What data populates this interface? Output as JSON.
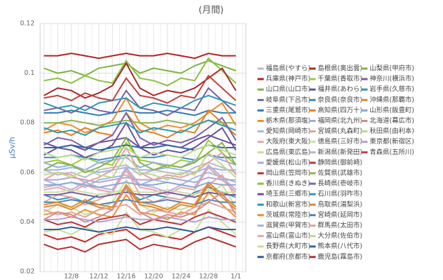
{
  "chart_data": {
    "type": "line",
    "title": "(月間)",
    "y_label": "μSv/h",
    "categories": [
      null,
      null,
      "12/8",
      null,
      "12/12",
      null,
      "12/16",
      null,
      "12/20",
      null,
      "12/24",
      null,
      "12/28",
      null,
      "1/1"
    ],
    "ylim": [
      0.02,
      0.12
    ],
    "yticks": [
      0.02,
      0.04,
      0.06,
      0.08,
      0.1,
      0.12
    ],
    "grid": true,
    "series": [
      {
        "name": "福島県(やすら)",
        "color": "#bbbbbb",
        "values": [
          0.061,
          0.059,
          0.06,
          0.058,
          0.061,
          0.062,
          0.063,
          0.059,
          0.061,
          0.06,
          0.059,
          0.062,
          0.064,
          0.062,
          0.06
        ]
      },
      {
        "name": "兵庫県(神戸市)",
        "color": "#b22222",
        "values": [
          0.107,
          0.107,
          0.108,
          0.107,
          0.106,
          0.107,
          0.108,
          0.107,
          0.107,
          0.108,
          0.107,
          0.106,
          0.108,
          0.107,
          0.107
        ]
      },
      {
        "name": "山口県(山口市)",
        "color": "#7cb342",
        "values": [
          0.102,
          0.1,
          0.101,
          0.099,
          0.102,
          0.103,
          0.104,
          0.1,
          0.102,
          0.101,
          0.1,
          0.103,
          0.105,
          0.103,
          0.101
        ]
      },
      {
        "name": "岐阜県(下呂市)",
        "color": "#7460a8",
        "values": [
          0.085,
          0.086,
          0.084,
          0.087,
          0.085,
          0.084,
          0.093,
          0.086,
          0.085,
          0.083,
          0.086,
          0.085,
          0.094,
          0.089,
          0.084
        ]
      },
      {
        "name": "三重県(尾鷲市)",
        "color": "#2c7bb6",
        "values": [
          0.084,
          0.084,
          0.085,
          0.084,
          0.083,
          0.084,
          0.085,
          0.084,
          0.084,
          0.085,
          0.084,
          0.083,
          0.085,
          0.084,
          0.084
        ]
      },
      {
        "name": "栃木県(那須塩)",
        "color": "#f08c28",
        "values": [
          0.077,
          0.08,
          0.079,
          0.076,
          0.078,
          0.081,
          0.09,
          0.08,
          0.077,
          0.079,
          0.078,
          0.08,
          0.084,
          0.088,
          0.079
        ]
      },
      {
        "name": "愛知県(岡崎市)",
        "color": "#9cbce4",
        "values": [
          0.057,
          0.055,
          0.056,
          0.054,
          0.057,
          0.058,
          0.059,
          0.055,
          0.057,
          0.056,
          0.055,
          0.058,
          0.06,
          0.058,
          0.056
        ]
      },
      {
        "name": "大阪府(東大阪)",
        "color": "#eaa4a4",
        "values": [
          0.053,
          0.054,
          0.052,
          0.055,
          0.053,
          0.052,
          0.061,
          0.054,
          0.053,
          0.051,
          0.054,
          0.053,
          0.062,
          0.057,
          0.052
        ]
      },
      {
        "name": "広島県(東広島)",
        "color": "#c6df96",
        "values": [
          0.044,
          0.047,
          0.046,
          0.043,
          0.045,
          0.048,
          0.057,
          0.047,
          0.044,
          0.046,
          0.045,
          0.047,
          0.051,
          0.055,
          0.046
        ]
      },
      {
        "name": "愛媛県(松山市)",
        "color": "#b0a6d4",
        "values": [
          0.057,
          0.057,
          0.058,
          0.057,
          0.056,
          0.057,
          0.058,
          0.057,
          0.057,
          0.058,
          0.057,
          0.056,
          0.058,
          0.057,
          0.057
        ]
      },
      {
        "name": "岡山県(笠岡市)",
        "color": "#c62828",
        "values": [
          0.035,
          0.033,
          0.034,
          0.032,
          0.035,
          0.036,
          0.037,
          0.033,
          0.035,
          0.034,
          0.033,
          0.036,
          0.038,
          0.036,
          0.034
        ]
      },
      {
        "name": "香川県(きぬき)",
        "color": "#8cbf3f",
        "values": [
          0.097,
          0.098,
          0.096,
          0.099,
          0.097,
          0.096,
          0.105,
          0.098,
          0.097,
          0.095,
          0.098,
          0.097,
          0.106,
          0.101,
          0.096
        ]
      },
      {
        "name": "埼玉県(三郷市)",
        "color": "#6a4f9c",
        "values": [
          0.067,
          0.07,
          0.069,
          0.066,
          0.068,
          0.071,
          0.08,
          0.07,
          0.067,
          0.069,
          0.068,
          0.07,
          0.074,
          0.078,
          0.069
        ]
      },
      {
        "name": "和歌山(新宮市)",
        "color": "#2b97b3",
        "values": [
          0.051,
          0.049,
          0.05,
          0.048,
          0.051,
          0.052,
          0.053,
          0.049,
          0.051,
          0.05,
          0.049,
          0.052,
          0.054,
          0.052,
          0.05
        ]
      },
      {
        "name": "茨城県(常陸市)",
        "color": "#ec8f2c",
        "values": [
          0.043,
          0.044,
          0.042,
          0.045,
          0.043,
          0.042,
          0.051,
          0.044,
          0.043,
          0.041,
          0.044,
          0.043,
          0.052,
          0.047,
          0.042
        ]
      },
      {
        "name": "滋賀県(甲賀市)",
        "color": "#98b8e0",
        "values": [
          0.061,
          0.061,
          0.062,
          0.061,
          0.06,
          0.061,
          0.062,
          0.061,
          0.061,
          0.062,
          0.061,
          0.06,
          0.062,
          0.061,
          0.061
        ]
      },
      {
        "name": "富山県(富山市)",
        "color": "#e8a5a5",
        "values": [
          0.048,
          0.051,
          0.05,
          0.047,
          0.049,
          0.052,
          0.061,
          0.051,
          0.048,
          0.05,
          0.049,
          0.051,
          0.055,
          0.059,
          0.05
        ]
      },
      {
        "name": "長野県(大町市)",
        "color": "#c8e098",
        "values": [
          0.036,
          0.037,
          0.035,
          0.038,
          0.036,
          0.035,
          0.044,
          0.037,
          0.036,
          0.034,
          0.037,
          0.036,
          0.045,
          0.04,
          0.035
        ]
      },
      {
        "name": "京都府(京都市)",
        "color": "#2a5a9a",
        "values": [
          0.037,
          0.037,
          0.038,
          0.037,
          0.036,
          0.037,
          0.038,
          0.037,
          0.037,
          0.038,
          0.037,
          0.036,
          0.038,
          0.037,
          0.037
        ]
      },
      {
        "name": "島根県(奥出雲)",
        "color": "#a52a2a",
        "values": [
          0.091,
          0.094,
          0.093,
          0.09,
          0.092,
          0.095,
          0.104,
          0.094,
          0.091,
          0.093,
          0.092,
          0.094,
          0.098,
          0.102,
          0.093
        ]
      },
      {
        "name": "千葉県(香取市)",
        "color": "#9acd32",
        "values": [
          0.064,
          0.065,
          0.063,
          0.066,
          0.064,
          0.063,
          0.072,
          0.065,
          0.064,
          0.062,
          0.065,
          0.064,
          0.073,
          0.068,
          0.063
        ]
      },
      {
        "name": "福井県(あわら)",
        "color": "#6b4c9a",
        "values": [
          0.072,
          0.07,
          0.071,
          0.069,
          0.072,
          0.073,
          0.074,
          0.07,
          0.072,
          0.071,
          0.07,
          0.073,
          0.075,
          0.073,
          0.071
        ]
      },
      {
        "name": "奈良県(奈良市)",
        "color": "#3a8ac4",
        "values": [
          0.066,
          0.066,
          0.067,
          0.066,
          0.065,
          0.066,
          0.067,
          0.066,
          0.066,
          0.067,
          0.066,
          0.065,
          0.067,
          0.066,
          0.066
        ]
      },
      {
        "name": "高知県(四万十)",
        "color": "#e67e22",
        "values": [
          0.076,
          0.077,
          0.075,
          0.078,
          0.076,
          0.075,
          0.084,
          0.077,
          0.076,
          0.074,
          0.077,
          0.076,
          0.085,
          0.08,
          0.075
        ]
      },
      {
        "name": "福岡県(北九州)",
        "color": "#8fb3dc",
        "values": [
          0.064,
          0.062,
          0.063,
          0.061,
          0.064,
          0.065,
          0.066,
          0.062,
          0.064,
          0.063,
          0.062,
          0.065,
          0.067,
          0.065,
          0.063
        ]
      },
      {
        "name": "宮城県(丸森町)",
        "color": "#e3a0a0",
        "values": [
          0.057,
          0.06,
          0.059,
          0.056,
          0.058,
          0.061,
          0.07,
          0.06,
          0.057,
          0.059,
          0.058,
          0.06,
          0.064,
          0.068,
          0.059
        ]
      },
      {
        "name": "徳島県(三好市)",
        "color": "#c9e2a2",
        "values": [
          0.052,
          0.052,
          0.053,
          0.052,
          0.051,
          0.052,
          0.053,
          0.052,
          0.052,
          0.053,
          0.052,
          0.051,
          0.053,
          0.052,
          0.052
        ]
      },
      {
        "name": "新潟県(新発田)",
        "color": "#b9abd9",
        "values": [
          0.054,
          0.055,
          0.053,
          0.056,
          0.054,
          0.053,
          0.062,
          0.055,
          0.054,
          0.052,
          0.055,
          0.054,
          0.063,
          0.058,
          0.053
        ]
      },
      {
        "name": "静岡県(御前崎)",
        "color": "#b33a3a",
        "values": [
          0.041,
          0.039,
          0.04,
          0.038,
          0.041,
          0.042,
          0.043,
          0.039,
          0.041,
          0.04,
          0.039,
          0.042,
          0.044,
          0.042,
          0.04
        ]
      },
      {
        "name": "佐賀県(武雄市)",
        "color": "#8fb24e",
        "values": [
          0.08,
          0.08,
          0.081,
          0.08,
          0.079,
          0.08,
          0.081,
          0.08,
          0.08,
          0.081,
          0.08,
          0.079,
          0.081,
          0.08,
          0.08
        ]
      },
      {
        "name": "長崎県(壱岐市)",
        "color": "#7b62aa",
        "values": [
          0.071,
          0.074,
          0.073,
          0.07,
          0.072,
          0.075,
          0.084,
          0.074,
          0.071,
          0.073,
          0.072,
          0.074,
          0.078,
          0.082,
          0.073
        ]
      },
      {
        "name": "石川県(羽咋市)",
        "color": "#2a9ab2",
        "values": [
          0.088,
          0.086,
          0.087,
          0.085,
          0.088,
          0.089,
          0.09,
          0.086,
          0.088,
          0.087,
          0.086,
          0.089,
          0.091,
          0.089,
          0.087
        ]
      },
      {
        "name": "鳥取県(湯梨浜)",
        "color": "#e0872e",
        "values": [
          0.046,
          0.047,
          0.045,
          0.048,
          0.046,
          0.045,
          0.054,
          0.047,
          0.046,
          0.044,
          0.047,
          0.046,
          0.055,
          0.05,
          0.045
        ]
      },
      {
        "name": "宮崎県(延岡市)",
        "color": "#4a82c2",
        "values": [
          0.048,
          0.048,
          0.049,
          0.048,
          0.047,
          0.048,
          0.049,
          0.048,
          0.048,
          0.049,
          0.048,
          0.047,
          0.049,
          0.048,
          0.048
        ]
      },
      {
        "name": "群馬県(太田市)",
        "color": "#e2a2a2",
        "values": [
          0.045,
          0.043,
          0.044,
          0.042,
          0.045,
          0.046,
          0.047,
          0.043,
          0.045,
          0.044,
          0.043,
          0.046,
          0.048,
          0.046,
          0.044
        ]
      },
      {
        "name": "大分県(佐伯市)",
        "color": "#c2d98e",
        "values": [
          0.059,
          0.06,
          0.058,
          0.061,
          0.059,
          0.058,
          0.067,
          0.06,
          0.059,
          0.057,
          0.06,
          0.059,
          0.068,
          0.063,
          0.058
        ]
      },
      {
        "name": "熊本県(八代市)",
        "color": "#2b6aa8",
        "values": [
          0.07,
          0.07,
          0.071,
          0.07,
          0.069,
          0.07,
          0.071,
          0.07,
          0.07,
          0.071,
          0.07,
          0.069,
          0.071,
          0.07,
          0.07
        ]
      },
      {
        "name": "鹿児島(霧島市)",
        "color": "#b03030",
        "values": [
          0.031,
          0.029,
          0.03,
          0.028,
          0.031,
          0.032,
          0.033,
          0.029,
          0.031,
          0.03,
          0.029,
          0.032,
          0.034,
          0.032,
          0.03
        ]
      },
      {
        "name": "山梨県(甲府市)",
        "color": "#8ab04a",
        "values": [
          0.061,
          0.064,
          0.063,
          0.06,
          0.062,
          0.065,
          0.074,
          0.064,
          0.061,
          0.063,
          0.062,
          0.064,
          0.068,
          0.072,
          0.063
        ]
      },
      {
        "name": "神奈川(横浜市)",
        "color": "#7a5aa0",
        "values": [
          0.051,
          0.051,
          0.052,
          0.051,
          0.05,
          0.051,
          0.052,
          0.051,
          0.051,
          0.052,
          0.051,
          0.05,
          0.052,
          0.051,
          0.051
        ]
      },
      {
        "name": "岩手県(久慈市)",
        "color": "#2a9ab0",
        "values": [
          0.078,
          0.076,
          0.077,
          0.075,
          0.078,
          0.079,
          0.08,
          0.076,
          0.078,
          0.077,
          0.076,
          0.079,
          0.081,
          0.079,
          0.077
        ]
      },
      {
        "name": "沖縄県(那覇市)",
        "color": "#e08a2a",
        "values": [
          0.047,
          0.048,
          0.046,
          0.049,
          0.047,
          0.046,
          0.055,
          0.048,
          0.047,
          0.045,
          0.048,
          0.047,
          0.056,
          0.051,
          0.046
        ]
      },
      {
        "name": "山形県(飯豊町)",
        "color": "#8aa8d0",
        "values": [
          0.055,
          0.055,
          0.056,
          0.055,
          0.054,
          0.055,
          0.056,
          0.055,
          0.055,
          0.056,
          0.055,
          0.054,
          0.056,
          0.055,
          0.055
        ]
      },
      {
        "name": "北海道(幕広市)",
        "color": "#d48c8c",
        "values": [
          0.041,
          0.044,
          0.043,
          0.04,
          0.042,
          0.045,
          0.054,
          0.044,
          0.041,
          0.043,
          0.042,
          0.044,
          0.048,
          0.052,
          0.043
        ]
      },
      {
        "name": "秋田県(由利本)",
        "color": "#bcd88e",
        "values": [
          0.068,
          0.066,
          0.067,
          0.065,
          0.068,
          0.069,
          0.07,
          0.066,
          0.068,
          0.067,
          0.066,
          0.069,
          0.071,
          0.069,
          0.067
        ]
      },
      {
        "name": "東京都(新宿区)",
        "color": "#ae9ed0",
        "values": [
          0.041,
          0.041,
          0.042,
          0.041,
          0.04,
          0.041,
          0.042,
          0.041,
          0.041,
          0.042,
          0.041,
          0.04,
          0.042,
          0.041,
          0.041
        ]
      },
      {
        "name": "青森県(五所川)",
        "color": "#c04040",
        "values": [
          0.09,
          0.091,
          0.089,
          0.092,
          0.09,
          0.089,
          0.098,
          0.091,
          0.09,
          0.088,
          0.091,
          0.09,
          0.099,
          0.094,
          0.089
        ]
      }
    ]
  }
}
